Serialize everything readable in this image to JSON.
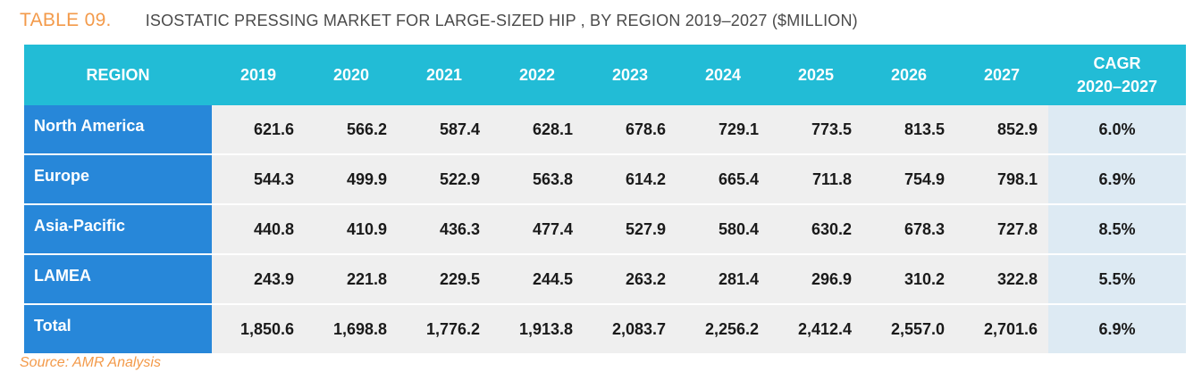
{
  "header": {
    "table_number": "TABLE 09.",
    "title": "ISOSTATIC PRESSING MARKET FOR LARGE-SIZED HIP , BY REGION 2019–2027 ($MILLION)"
  },
  "table": {
    "columns": [
      "REGION",
      "2019",
      "2020",
      "2021",
      "2022",
      "2023",
      "2024",
      "2025",
      "2026",
      "2027",
      "CAGR"
    ],
    "cagr_line1": "CAGR",
    "cagr_line2": "2020–2027",
    "rows": [
      {
        "region": "North America",
        "values": [
          "621.6",
          "566.2",
          "587.4",
          "628.1",
          "678.6",
          "729.1",
          "773.5",
          "813.5",
          "852.9"
        ],
        "cagr": "6.0%"
      },
      {
        "region": "Europe",
        "values": [
          "544.3",
          "499.9",
          "522.9",
          "563.8",
          "614.2",
          "665.4",
          "711.8",
          "754.9",
          "798.1"
        ],
        "cagr": "6.9%"
      },
      {
        "region": "Asia-Pacific",
        "values": [
          "440.8",
          "410.9",
          "436.3",
          "477.4",
          "527.9",
          "580.4",
          "630.2",
          "678.3",
          "727.8"
        ],
        "cagr": "8.5%"
      },
      {
        "region": "LAMEA",
        "values": [
          "243.9",
          "221.8",
          "229.5",
          "244.5",
          "263.2",
          "281.4",
          "296.9",
          "310.2",
          "322.8"
        ],
        "cagr": "5.5%"
      },
      {
        "region": "Total",
        "values": [
          "1,850.6",
          "1,698.8",
          "1,776.2",
          "1,913.8",
          "2,083.7",
          "2,256.2",
          "2,412.4",
          "2,557.0",
          "2,701.6"
        ],
        "cagr": "6.9%"
      }
    ]
  },
  "footer": {
    "source": "Source: AMR Analysis"
  },
  "colors": {
    "accent_orange": "#F39A4A",
    "header_cyan": "#22BCD6",
    "region_blue": "#2787D9",
    "cell_gray": "#EFEFEF",
    "cagr_cell": "#DDEAF3"
  }
}
